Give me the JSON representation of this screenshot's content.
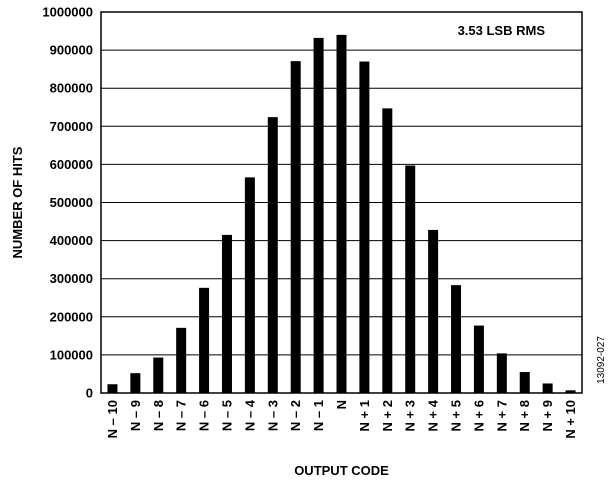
{
  "chart_data": {
    "type": "bar",
    "xlabel": "OUTPUT CODE",
    "ylabel": "NUMBER OF HITS",
    "annotation": "3.53 LSB RMS",
    "figure_id": "13092-027",
    "ylim": [
      0,
      1000000
    ],
    "yticks": [
      "0",
      "100000",
      "200000",
      "300000",
      "400000",
      "500000",
      "600000",
      "700000",
      "800000",
      "900000",
      "1000000"
    ],
    "grid": true,
    "legend": "none",
    "bar_color": "#000000",
    "categories": [
      "N – 10",
      "N – 9",
      "N – 8",
      "N – 7",
      "N – 6",
      "N – 5",
      "N – 4",
      "N – 3",
      "N – 2",
      "N – 1",
      "N",
      "N + 1",
      "N + 2",
      "N + 3",
      "N + 4",
      "N + 5",
      "N + 6",
      "N + 7",
      "N + 8",
      "N + 9",
      "N + 10"
    ],
    "values": [
      23000,
      52000,
      93000,
      171000,
      276000,
      415000,
      566000,
      724000,
      871000,
      932000,
      940000,
      870000,
      747000,
      597000,
      428000,
      283000,
      177000,
      104000,
      55000,
      25000,
      7000
    ]
  }
}
